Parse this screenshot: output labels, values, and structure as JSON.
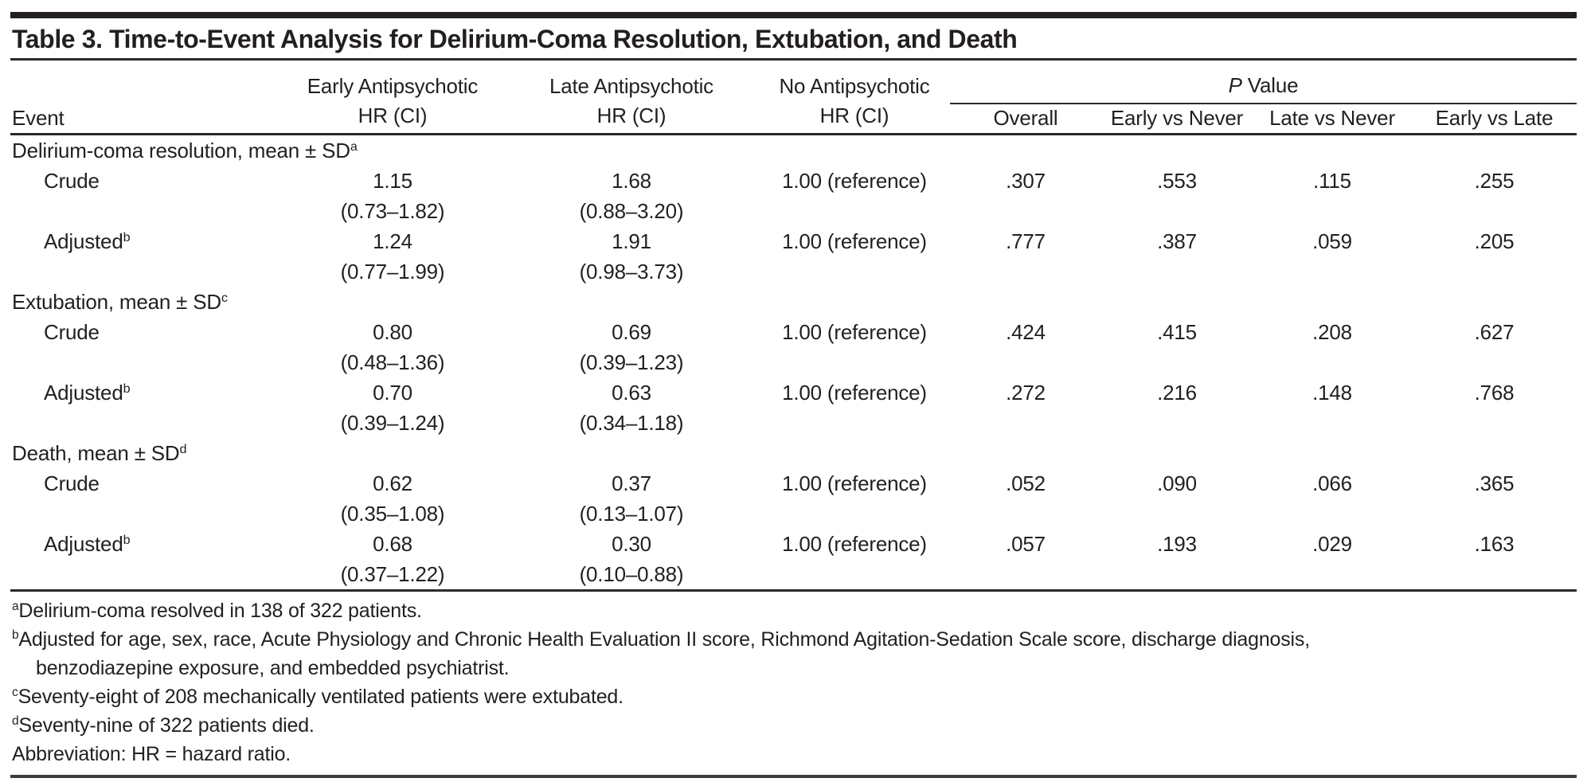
{
  "title": "Table 3. Time-to-Event Analysis for Delirium-Coma Resolution, Extubation, and Death",
  "header": {
    "event": "Event",
    "groups": [
      {
        "line1": "Early Antipsychotic",
        "line2": "HR (CI)"
      },
      {
        "line1": "Late Antipsychotic",
        "line2": "HR (CI)"
      },
      {
        "line1": "No Antipsychotic",
        "line2": "HR (CI)"
      }
    ],
    "pvalue": {
      "p": "P",
      "rest": " Value",
      "subcols": [
        "Overall",
        "Early vs Never",
        "Late vs Never",
        "Early vs Late"
      ]
    }
  },
  "sections": [
    {
      "label": "Delirium-coma resolution, mean ± SD",
      "sup": "a",
      "rows": [
        {
          "label": "Crude",
          "sup": "",
          "early_hr": "1.15",
          "early_ci": "(0.73–1.82)",
          "late_hr": "1.68",
          "late_ci": "(0.88–3.20)",
          "no_hr": "1.00 (reference)",
          "p": [
            ".307",
            ".553",
            ".115",
            ".255"
          ]
        },
        {
          "label": "Adjusted",
          "sup": "b",
          "early_hr": "1.24",
          "early_ci": "(0.77–1.99)",
          "late_hr": "1.91",
          "late_ci": "(0.98–3.73)",
          "no_hr": "1.00 (reference)",
          "p": [
            ".777",
            ".387",
            ".059",
            ".205"
          ]
        }
      ]
    },
    {
      "label": "Extubation, mean ± SD",
      "sup": "c",
      "rows": [
        {
          "label": "Crude",
          "sup": "",
          "early_hr": "0.80",
          "early_ci": "(0.48–1.36)",
          "late_hr": "0.69",
          "late_ci": "(0.39–1.23)",
          "no_hr": "1.00 (reference)",
          "p": [
            ".424",
            ".415",
            ".208",
            ".627"
          ]
        },
        {
          "label": "Adjusted",
          "sup": "b",
          "early_hr": "0.70",
          "early_ci": "(0.39–1.24)",
          "late_hr": "0.63",
          "late_ci": "(0.34–1.18)",
          "no_hr": "1.00 (reference)",
          "p": [
            ".272",
            ".216",
            ".148",
            ".768"
          ]
        }
      ]
    },
    {
      "label": "Death, mean ± SD",
      "sup": "d",
      "rows": [
        {
          "label": "Crude",
          "sup": "",
          "early_hr": "0.62",
          "early_ci": "(0.35–1.08)",
          "late_hr": "0.37",
          "late_ci": "(0.13–1.07)",
          "no_hr": "1.00 (reference)",
          "p": [
            ".052",
            ".090",
            ".066",
            ".365"
          ]
        },
        {
          "label": "Adjusted",
          "sup": "b",
          "early_hr": "0.68",
          "early_ci": "(0.37–1.22)",
          "late_hr": "0.30",
          "late_ci": "(0.10–0.88)",
          "no_hr": "1.00 (reference)",
          "p": [
            ".057",
            ".193",
            ".029",
            ".163"
          ]
        }
      ]
    }
  ],
  "footnotes": [
    {
      "sup": "a",
      "text": "Delirium-coma resolved in 138 of 322 patients."
    },
    {
      "sup": "b",
      "text": "Adjusted for age, sex, race, Acute Physiology and Chronic Health Evaluation II score, Richmond Agitation-Sedation Scale score, discharge diagnosis,"
    },
    {
      "sup": "",
      "text": "benzodiazepine exposure, and embedded psychiatrist."
    },
    {
      "sup": "c",
      "text": "Seventy-eight of 208 mechanically ventilated patients were extubated."
    },
    {
      "sup": "d",
      "text": "Seventy-nine of 322 patients died."
    },
    {
      "sup": "",
      "text": "Abbreviation: HR = hazard ratio."
    }
  ]
}
